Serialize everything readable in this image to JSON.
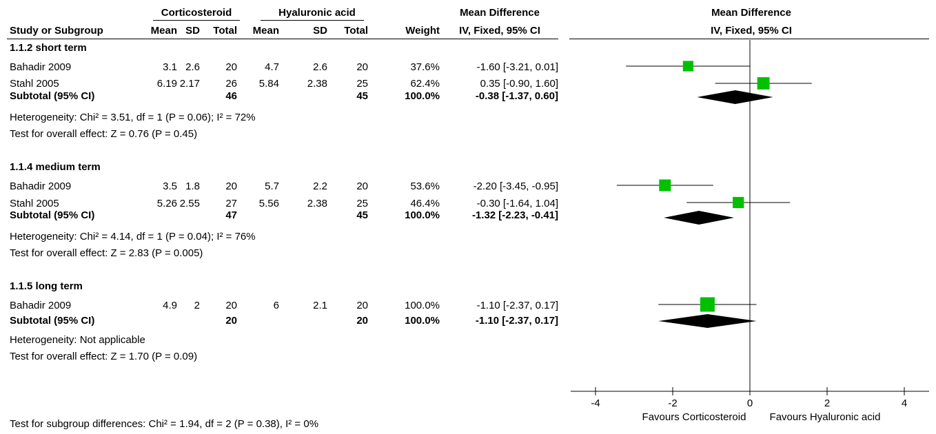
{
  "header": {
    "group_left": "Corticosteroid",
    "group_right": "Hyaluronic acid",
    "md_title": "Mean Difference",
    "md_method": "IV, Fixed, 95% CI",
    "plot_title": "Mean Difference",
    "plot_method": "IV, Fixed, 95% CI",
    "col_study": "Study or Subgroup",
    "col_mean1": "Mean",
    "col_sd1": "SD",
    "col_total1": "Total",
    "col_mean2": "Mean",
    "col_sd2": "SD",
    "col_total2": "Total",
    "col_weight": "Weight"
  },
  "groups": [
    {
      "title": "1.1.2 short term",
      "studies": [
        {
          "name": "Bahadir 2009",
          "mean1": "3.1",
          "sd1": "2.6",
          "total1": "20",
          "mean2": "4.7",
          "sd2": "2.6",
          "total2": "20",
          "weight": "37.6%",
          "ci": "-1.60 [-3.21, 0.01]"
        },
        {
          "name": "Stahl 2005",
          "mean1": "6.19",
          "sd1": "2.17",
          "total1": "26",
          "mean2": "5.84",
          "sd2": "2.38",
          "total2": "25",
          "weight": "62.4%",
          "ci": "0.35 [-0.90, 1.60]"
        }
      ],
      "subtotal": {
        "label": "Subtotal (95% CI)",
        "total1": "46",
        "total2": "45",
        "weight": "100.0%",
        "ci": "-0.38 [-1.37, 0.60]"
      },
      "heterogeneity": "Heterogeneity: Chi² = 3.51, df = 1 (P = 0.06); I² = 72%",
      "overall": "Test for overall effect: Z = 0.76 (P = 0.45)"
    },
    {
      "title": "1.1.4 medium term",
      "studies": [
        {
          "name": "Bahadir 2009",
          "mean1": "3.5",
          "sd1": "1.8",
          "total1": "20",
          "mean2": "5.7",
          "sd2": "2.2",
          "total2": "20",
          "weight": "53.6%",
          "ci": "-2.20 [-3.45, -0.95]"
        },
        {
          "name": "Stahl 2005",
          "mean1": "5.26",
          "sd1": "2.55",
          "total1": "27",
          "mean2": "5.56",
          "sd2": "2.38",
          "total2": "25",
          "weight": "46.4%",
          "ci": "-0.30 [-1.64, 1.04]"
        }
      ],
      "subtotal": {
        "label": "Subtotal (95% CI)",
        "total1": "47",
        "total2": "45",
        "weight": "100.0%",
        "ci": "-1.32 [-2.23, -0.41]"
      },
      "heterogeneity": "Heterogeneity: Chi² = 4.14, df = 1 (P = 0.04); I² = 76%",
      "overall": "Test for overall effect: Z = 2.83 (P = 0.005)"
    },
    {
      "title": "1.1.5 long term",
      "studies": [
        {
          "name": "Bahadir 2009",
          "mean1": "4.9",
          "sd1": "2",
          "total1": "20",
          "mean2": "6",
          "sd2": "2.1",
          "total2": "20",
          "weight": "100.0%",
          "ci": "-1.10 [-2.37, 0.17]"
        }
      ],
      "subtotal": {
        "label": "Subtotal (95% CI)",
        "total1": "20",
        "total2": "20",
        "weight": "100.0%",
        "ci": "-1.10 [-2.37, 0.17]"
      },
      "heterogeneity": "Heterogeneity: Not applicable",
      "overall": "Test for overall effect: Z = 1.70 (P = 0.09)"
    }
  ],
  "footer": {
    "subgroup_test": "Test for subgroup differences: Chi² = 1.94, df = 2 (P = 0.38), I² = 0%",
    "favours_left": "Favours Corticosteroid",
    "favours_right": "Favours Hyaluronic acid"
  },
  "colors": {
    "square": "#00c000",
    "diamond": "#000000",
    "line": "#000000"
  },
  "chart_data": {
    "type": "forest",
    "xlim": [
      -4,
      4
    ],
    "xticks": [
      "-4",
      "-2",
      "0",
      "2",
      "4"
    ],
    "rows": [
      {
        "kind": "study",
        "est": -1.6,
        "lo": -3.21,
        "hi": 0.01,
        "weight": 37.6
      },
      {
        "kind": "study",
        "est": 0.35,
        "lo": -0.9,
        "hi": 1.6,
        "weight": 62.4
      },
      {
        "kind": "subtotal",
        "est": -0.38,
        "lo": -1.37,
        "hi": 0.6
      },
      {
        "kind": "study",
        "est": -2.2,
        "lo": -3.45,
        "hi": -0.95,
        "weight": 53.6
      },
      {
        "kind": "study",
        "est": -0.3,
        "lo": -1.64,
        "hi": 1.04,
        "weight": 46.4
      },
      {
        "kind": "subtotal",
        "est": -1.32,
        "lo": -2.23,
        "hi": -0.41
      },
      {
        "kind": "study",
        "est": -1.1,
        "lo": -2.37,
        "hi": 0.17,
        "weight": 100.0
      },
      {
        "kind": "subtotal",
        "est": -1.1,
        "lo": -2.37,
        "hi": 0.17
      }
    ]
  }
}
